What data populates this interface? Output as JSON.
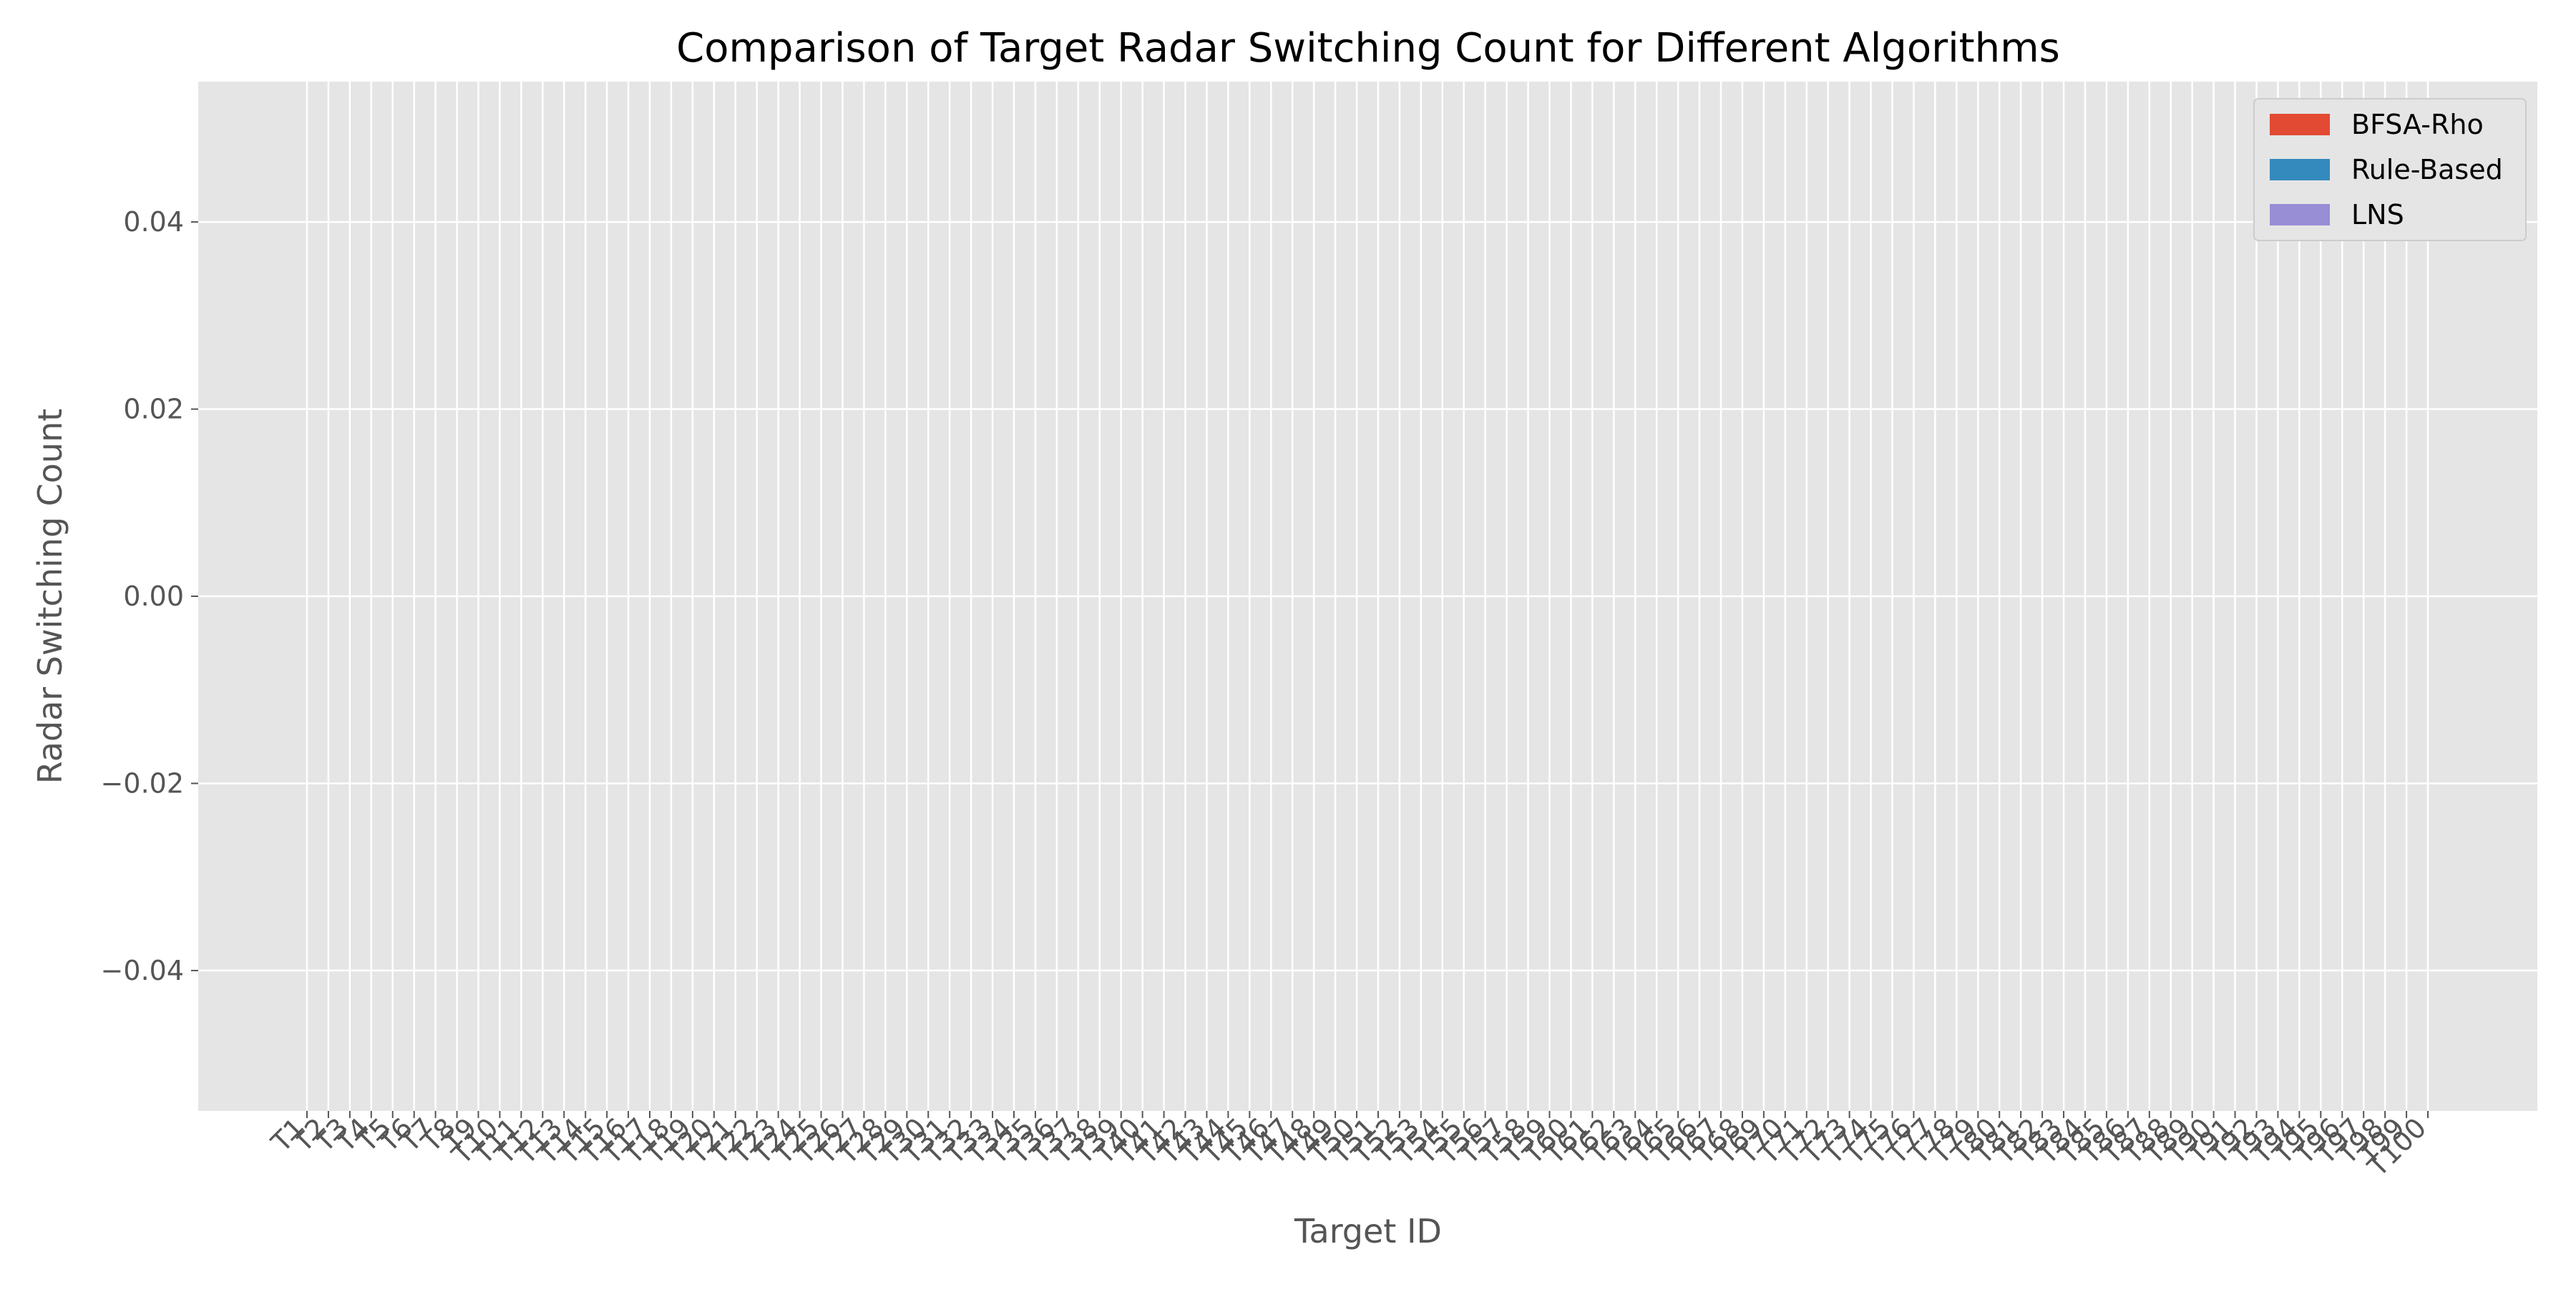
{
  "chart_data": {
    "type": "bar",
    "title": "Comparison of Target Radar Switching Count for Different Algorithms",
    "xlabel": "Target ID",
    "ylabel": "Radar Switching Count",
    "ylim": [
      -0.055,
      0.055
    ],
    "yticks": [
      {
        "value": 0.04,
        "label": "0.04"
      },
      {
        "value": 0.02,
        "label": "0.02"
      },
      {
        "value": 0.0,
        "label": "0.00"
      },
      {
        "value": -0.02,
        "label": "−0.02"
      },
      {
        "value": -0.04,
        "label": "−0.04"
      }
    ],
    "categories": [
      "T1",
      "T2",
      "T3",
      "T4",
      "T5",
      "T6",
      "T7",
      "T8",
      "T9",
      "T10",
      "T11",
      "T12",
      "T13",
      "T14",
      "T15",
      "T16",
      "T17",
      "T18",
      "T19",
      "T20",
      "T21",
      "T22",
      "T23",
      "T24",
      "T25",
      "T26",
      "T27",
      "T28",
      "T29",
      "T30",
      "T31",
      "T32",
      "T33",
      "T34",
      "T35",
      "T36",
      "T37",
      "T38",
      "T39",
      "T40",
      "T41",
      "T42",
      "T43",
      "T44",
      "T45",
      "T46",
      "T47",
      "T48",
      "T49",
      "T50",
      "T51",
      "T52",
      "T53",
      "T54",
      "T55",
      "T56",
      "T57",
      "T58",
      "T59",
      "T60",
      "T61",
      "T62",
      "T63",
      "T64",
      "T65",
      "T66",
      "T67",
      "T68",
      "T69",
      "T70",
      "T71",
      "T72",
      "T73",
      "T74",
      "T75",
      "T76",
      "T77",
      "T78",
      "T79",
      "T80",
      "T81",
      "T82",
      "T83",
      "T84",
      "T85",
      "T86",
      "T87",
      "T88",
      "T89",
      "T90",
      "T91",
      "T92",
      "T93",
      "T94",
      "T95",
      "T96",
      "T97",
      "T98",
      "T99",
      "T100"
    ],
    "series": [
      {
        "name": "BFSA-Rho",
        "color": "#E24A33",
        "values": [
          0,
          0,
          0,
          0,
          0,
          0,
          0,
          0,
          0,
          0,
          0,
          0,
          0,
          0,
          0,
          0,
          0,
          0,
          0,
          0,
          0,
          0,
          0,
          0,
          0,
          0,
          0,
          0,
          0,
          0,
          0,
          0,
          0,
          0,
          0,
          0,
          0,
          0,
          0,
          0,
          0,
          0,
          0,
          0,
          0,
          0,
          0,
          0,
          0,
          0,
          0,
          0,
          0,
          0,
          0,
          0,
          0,
          0,
          0,
          0,
          0,
          0,
          0,
          0,
          0,
          0,
          0,
          0,
          0,
          0,
          0,
          0,
          0,
          0,
          0,
          0,
          0,
          0,
          0,
          0,
          0,
          0,
          0,
          0,
          0,
          0,
          0,
          0,
          0,
          0,
          0,
          0,
          0,
          0,
          0,
          0,
          0,
          0,
          0,
          0
        ]
      },
      {
        "name": "Rule-Based",
        "color": "#348ABD",
        "values": [
          0,
          0,
          0,
          0,
          0,
          0,
          0,
          0,
          0,
          0,
          0,
          0,
          0,
          0,
          0,
          0,
          0,
          0,
          0,
          0,
          0,
          0,
          0,
          0,
          0,
          0,
          0,
          0,
          0,
          0,
          0,
          0,
          0,
          0,
          0,
          0,
          0,
          0,
          0,
          0,
          0,
          0,
          0,
          0,
          0,
          0,
          0,
          0,
          0,
          0,
          0,
          0,
          0,
          0,
          0,
          0,
          0,
          0,
          0,
          0,
          0,
          0,
          0,
          0,
          0,
          0,
          0,
          0,
          0,
          0,
          0,
          0,
          0,
          0,
          0,
          0,
          0,
          0,
          0,
          0,
          0,
          0,
          0,
          0,
          0,
          0,
          0,
          0,
          0,
          0,
          0,
          0,
          0,
          0,
          0,
          0,
          0,
          0,
          0,
          0
        ]
      },
      {
        "name": "LNS",
        "color": "#988ED5",
        "values": [
          0,
          0,
          0,
          0,
          0,
          0,
          0,
          0,
          0,
          0,
          0,
          0,
          0,
          0,
          0,
          0,
          0,
          0,
          0,
          0,
          0,
          0,
          0,
          0,
          0,
          0,
          0,
          0,
          0,
          0,
          0,
          0,
          0,
          0,
          0,
          0,
          0,
          0,
          0,
          0,
          0,
          0,
          0,
          0,
          0,
          0,
          0,
          0,
          0,
          0,
          0,
          0,
          0,
          0,
          0,
          0,
          0,
          0,
          0,
          0,
          0,
          0,
          0,
          0,
          0,
          0,
          0,
          0,
          0,
          0,
          0,
          0,
          0,
          0,
          0,
          0,
          0,
          0,
          0,
          0,
          0,
          0,
          0,
          0,
          0,
          0,
          0,
          0,
          0,
          0,
          0,
          0,
          0,
          0,
          0,
          0,
          0,
          0,
          0,
          0
        ]
      }
    ],
    "grid": true,
    "legend_position": "top-right",
    "plot_background": "#E5E5E5",
    "grid_color": "#FFFFFF"
  }
}
